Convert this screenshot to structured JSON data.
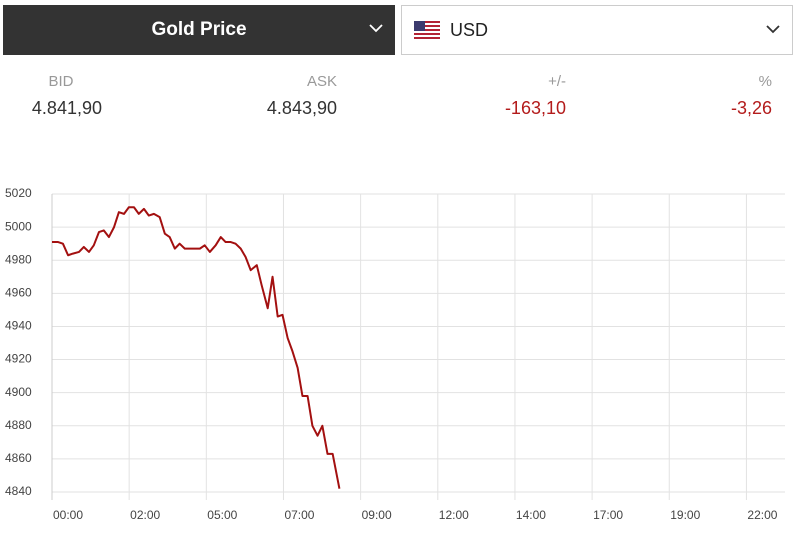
{
  "widget": {
    "selector": "Gold Price",
    "currency": "USD",
    "stats": [
      {
        "label": "BID",
        "value": "4.841,90"
      },
      {
        "label": "ASK",
        "value": "4.843,90"
      },
      {
        "label": "+/-",
        "value": "-163,10"
      },
      {
        "label": "%",
        "value": "-3,26"
      }
    ]
  },
  "chart_data": {
    "type": "line",
    "x": [
      0,
      0.19,
      0.34,
      0.5,
      0.65,
      0.84,
      0.99,
      1.15,
      1.3,
      1.46,
      1.61,
      1.77,
      1.93,
      2.08,
      2.24,
      2.39,
      2.55,
      2.7,
      2.86,
      3.01,
      3.17,
      3.35,
      3.51,
      3.66,
      3.82,
      3.97,
      4.13,
      4.44,
      4.6,
      4.75,
      4.91,
      5.09,
      5.25,
      5.4,
      5.56,
      5.71,
      5.87,
      6.02,
      6.18,
      6.37,
      6.52,
      6.71,
      6.86,
      7.02,
      7.17,
      7.33,
      7.48,
      7.64,
      7.79,
      7.95,
      8.1,
      8.26,
      8.41,
      8.57,
      8.73,
      8.94
    ],
    "series": [
      {
        "color": "#a31010",
        "values": [
          4991,
          4991,
          4990,
          4983,
          4984,
          4985,
          4988,
          4985,
          4989,
          4997,
          4998,
          4994,
          5000,
          5009,
          5008,
          5012,
          5012,
          5008,
          5011,
          5007,
          5008,
          5006,
          4996,
          4994,
          4987,
          4990,
          4987,
          4987,
          4987,
          4989,
          4985,
          4989,
          4994,
          4991,
          4991,
          4990,
          4987,
          4982,
          4974,
          4977,
          4965,
          4951,
          4970,
          4946,
          4947,
          4933,
          4925,
          4915,
          4898,
          4898,
          4880,
          4874,
          4880,
          4863,
          4863,
          4842
        ]
      }
    ],
    "xlim": [
      0,
      22.8
    ],
    "ylim": [
      4840,
      5020
    ],
    "xticks": [
      {
        "value": 0,
        "label": "00:00"
      },
      {
        "value": 2.4,
        "label": "02:00"
      },
      {
        "value": 4.8,
        "label": "05:00"
      },
      {
        "value": 7.2,
        "label": "07:00"
      },
      {
        "value": 9.6,
        "label": "09:00"
      },
      {
        "value": 12,
        "label": "12:00"
      },
      {
        "value": 14.4,
        "label": "14:00"
      },
      {
        "value": 16.8,
        "label": "17:00"
      },
      {
        "value": 19.2,
        "label": "19:00"
      },
      {
        "value": 21.6,
        "label": "22:00"
      }
    ],
    "yticks": [
      4840,
      4860,
      4880,
      4900,
      4920,
      4940,
      4960,
      4980,
      5000,
      5020
    ],
    "grid": true
  }
}
